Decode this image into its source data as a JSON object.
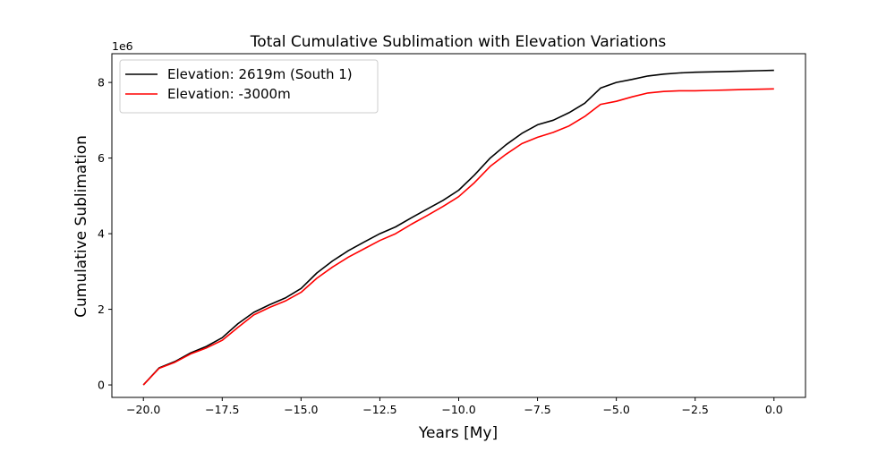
{
  "chart_data": {
    "type": "line",
    "title": "Total Cumulative Sublimation with Elevation Variations",
    "xlabel": "Years [My]",
    "ylabel": "Cumulative Sublimation",
    "y_offset_label": "1e6",
    "xlim": [
      -21.0,
      1.0
    ],
    "ylim": [
      -0.33,
      8.76
    ],
    "y_scale_multiplier": 1000000,
    "x_ticks": [
      -20.0,
      -17.5,
      -15.0,
      -12.5,
      -10.0,
      -7.5,
      -5.0,
      -2.5,
      0.0
    ],
    "x_tick_labels": [
      "−20.0",
      "−17.5",
      "−15.0",
      "−12.5",
      "−10.0",
      "−7.5",
      "−5.0",
      "−2.5",
      "0.0"
    ],
    "y_ticks": [
      0,
      2,
      4,
      6,
      8
    ],
    "y_tick_labels": [
      "0",
      "2",
      "4",
      "6",
      "8"
    ],
    "grid": false,
    "legend_position": "top-left",
    "x": [
      -20.0,
      -19.5,
      -19.0,
      -18.5,
      -18.0,
      -17.5,
      -17.0,
      -16.5,
      -16.0,
      -15.5,
      -15.0,
      -14.5,
      -14.0,
      -13.5,
      -13.0,
      -12.5,
      -12.0,
      -11.5,
      -11.0,
      -10.5,
      -10.0,
      -9.5,
      -9.0,
      -8.5,
      -8.0,
      -7.5,
      -7.0,
      -6.5,
      -6.0,
      -5.5,
      -5.0,
      -4.5,
      -4.0,
      -3.5,
      -3.0,
      -2.5,
      -2.0,
      -1.5,
      -1.0,
      -0.5,
      0.0
    ],
    "series": [
      {
        "name": "Elevation: 2619m (South 1)",
        "color": "#000000",
        "values": [
          0.0,
          0.45,
          0.62,
          0.85,
          1.02,
          1.25,
          1.62,
          1.92,
          2.12,
          2.3,
          2.55,
          2.96,
          3.28,
          3.55,
          3.78,
          4.0,
          4.18,
          4.42,
          4.65,
          4.88,
          5.15,
          5.55,
          6.0,
          6.35,
          6.65,
          6.88,
          7.0,
          7.2,
          7.45,
          7.85,
          8.0,
          8.08,
          8.17,
          8.22,
          8.25,
          8.27,
          8.28,
          8.29,
          8.3,
          8.31,
          8.32
        ]
      },
      {
        "name": "Elevation: -3000m",
        "color": "#ff0000",
        "values": [
          0.0,
          0.44,
          0.6,
          0.82,
          0.98,
          1.18,
          1.52,
          1.85,
          2.05,
          2.22,
          2.45,
          2.82,
          3.12,
          3.38,
          3.6,
          3.82,
          4.0,
          4.25,
          4.48,
          4.72,
          4.98,
          5.35,
          5.78,
          6.1,
          6.38,
          6.55,
          6.68,
          6.85,
          7.1,
          7.42,
          7.5,
          7.62,
          7.72,
          7.76,
          7.78,
          7.78,
          7.79,
          7.8,
          7.81,
          7.82,
          7.83
        ]
      }
    ]
  }
}
